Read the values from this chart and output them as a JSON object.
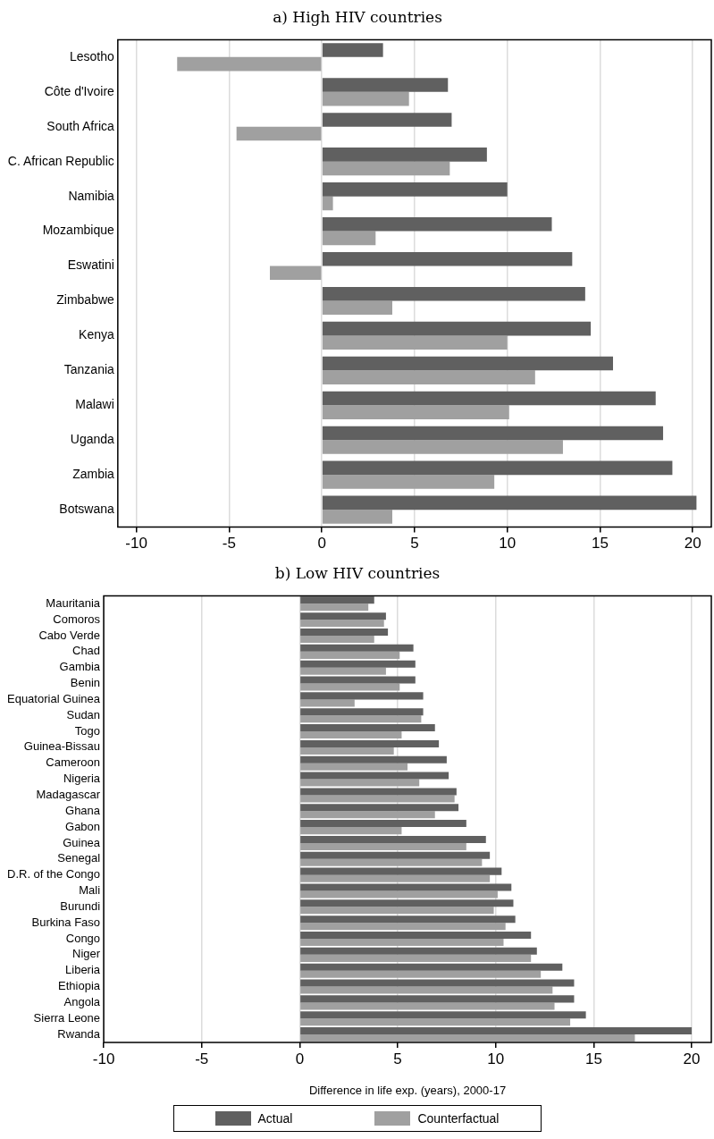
{
  "chart_data": [
    {
      "type": "bar",
      "orientation": "horizontal",
      "title": "a) High HIV countries",
      "categories": [
        "Lesotho",
        "Côte d'Ivoire",
        "South Africa",
        "C. African Republic",
        "Namibia",
        "Mozambique",
        "Eswatini",
        "Zimbabwe",
        "Kenya",
        "Tanzania",
        "Malawi",
        "Uganda",
        "Zambia",
        "Botswana"
      ],
      "series": [
        {
          "color": "#606060",
          "values": [
            3.3,
            6.8,
            7.0,
            8.9,
            10.0,
            12.4,
            13.5,
            14.2,
            14.5,
            15.7,
            18.0,
            18.4,
            18.9,
            20.2
          ]
        },
        {
          "color": "#a0a0a0",
          "values": [
            -7.8,
            4.7,
            -4.6,
            6.9,
            0.6,
            2.9,
            -2.8,
            3.8,
            10.0,
            11.5,
            10.1,
            13.0,
            9.3,
            3.8
          ]
        }
      ],
      "xlim": [
        -11,
        21
      ],
      "xticks": [
        -10,
        -5,
        0,
        5,
        10,
        15,
        20
      ],
      "grid": "x",
      "legend": false
    },
    {
      "type": "bar",
      "orientation": "horizontal",
      "title": "b) Low HIV countries",
      "xlabel": "Difference in life exp. (years), 2000-17",
      "categories": [
        "Mauritania",
        "Comoros",
        "Cabo Verde",
        "Chad",
        "Gambia",
        "Benin",
        "Equatorial Guinea",
        "Sudan",
        "Togo",
        "Guinea-Bissau",
        "Cameroon",
        "Nigeria",
        "Madagascar",
        "Ghana",
        "Gabon",
        "Guinea",
        "Senegal",
        "D.R. of the Congo",
        "Mali",
        "Burundi",
        "Burkina Faso",
        "Congo",
        "Niger",
        "Liberia",
        "Ethiopia",
        "Angola",
        "Sierra Leone",
        "Rwanda"
      ],
      "series": [
        {
          "name": "Actual",
          "color": "#606060",
          "values": [
            3.8,
            4.4,
            4.5,
            5.8,
            5.9,
            5.9,
            6.3,
            6.3,
            6.9,
            7.1,
            7.5,
            7.6,
            8.0,
            8.1,
            8.5,
            9.5,
            9.7,
            10.3,
            10.8,
            10.9,
            11.0,
            11.8,
            12.1,
            13.4,
            14.0,
            14.0,
            14.6,
            20.0
          ]
        },
        {
          "name": "Counterfactual",
          "color": "#a0a0a0",
          "values": [
            3.5,
            4.3,
            3.8,
            5.1,
            4.4,
            5.1,
            2.8,
            6.2,
            5.2,
            4.8,
            5.5,
            6.1,
            7.9,
            6.9,
            5.2,
            8.5,
            9.3,
            9.7,
            10.1,
            9.9,
            10.5,
            10.4,
            11.8,
            12.3,
            12.9,
            13.0,
            13.8,
            17.1
          ]
        }
      ],
      "xlim": [
        -10,
        21
      ],
      "xticks": [
        -10,
        -5,
        0,
        5,
        10,
        15,
        20
      ],
      "grid": "x",
      "legend": "bottom"
    }
  ]
}
